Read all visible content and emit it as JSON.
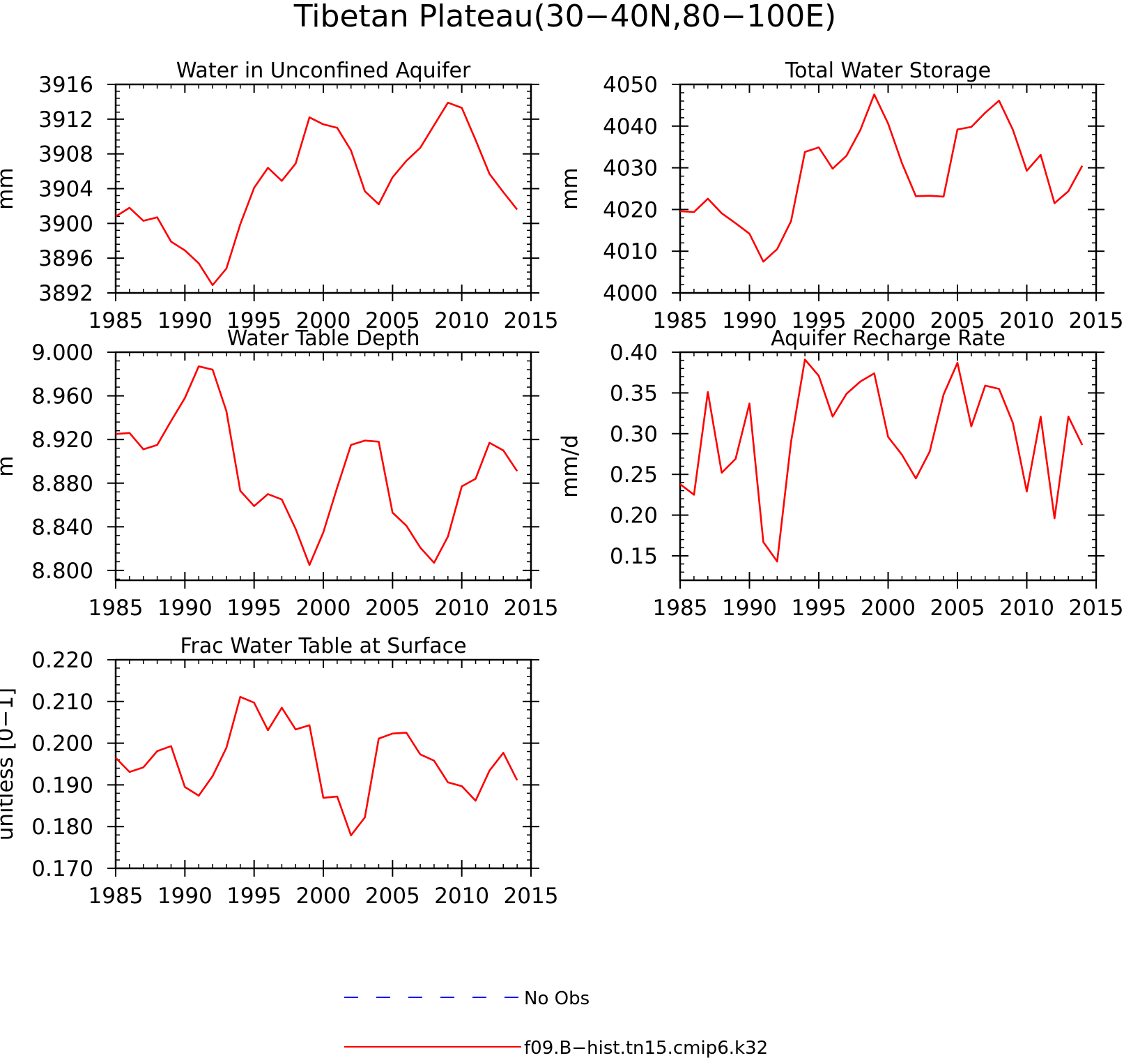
{
  "title": "Tibetan Plateau(30−40N,80−100E)",
  "colors": {
    "model": "#ff0000",
    "obs": "#0000ff",
    "axis": "#000000"
  },
  "legend": {
    "placement": "bottom-center",
    "entries": [
      {
        "label": "No Obs",
        "color": "#0000ff",
        "style": "dashed"
      },
      {
        "label": "f09.B−hist.tn15.cmip6.k32",
        "color": "#ff0000",
        "style": "solid"
      }
    ]
  },
  "chart_data": [
    {
      "type": "line",
      "title": "Water in Unconfined Aquifer",
      "ylabel": "mm",
      "xlim": [
        1985,
        2015
      ],
      "ylim": [
        3892,
        3916
      ],
      "xticks": [
        "1985",
        "1990",
        "1995",
        "2000",
        "2005",
        "2010",
        "2015"
      ],
      "yticks": [
        "3892",
        "3896",
        "3900",
        "3904",
        "3908",
        "3912",
        "3916"
      ],
      "x": [
        1985,
        1986,
        1987,
        1988,
        1989,
        1990,
        1991,
        1992,
        1993,
        1994,
        1995,
        1996,
        1997,
        1998,
        1999,
        2000,
        2001,
        2002,
        2003,
        2004,
        2005,
        2006,
        2007,
        2008,
        2009,
        2010,
        2011,
        2012,
        2013,
        2014
      ],
      "series": [
        {
          "values": [
            3900.8,
            3901.8,
            3900.3,
            3900.7,
            3897.9,
            3896.9,
            3895.4,
            3892.9,
            3894.8,
            3899.9,
            3904.1,
            3906.4,
            3904.9,
            3906.9,
            3912.2,
            3911.4,
            3911.0,
            3908.4,
            3903.7,
            3902.2,
            3905.3,
            3907.2,
            3908.7,
            3911.3,
            3913.9,
            3913.3,
            3909.6,
            3905.7,
            3903.6,
            3901.6
          ]
        }
      ],
      "grid": false
    },
    {
      "type": "line",
      "title": "Total Water Storage",
      "ylabel": "mm",
      "xlim": [
        1985,
        2015
      ],
      "ylim": [
        4000,
        4050
      ],
      "xticks": [
        "1985",
        "1990",
        "1995",
        "2000",
        "2005",
        "2010",
        "2015"
      ],
      "yticks": [
        "4000",
        "4010",
        "4020",
        "4030",
        "4040",
        "4050"
      ],
      "x": [
        1985,
        1986,
        1987,
        1988,
        1989,
        1990,
        1991,
        1992,
        1993,
        1994,
        1995,
        1996,
        1997,
        1998,
        1999,
        2000,
        2001,
        2002,
        2003,
        2004,
        2005,
        2006,
        2007,
        2008,
        2009,
        2010,
        2011,
        2012,
        2013,
        2014
      ],
      "series": [
        {
          "values": [
            4019.6,
            4019.4,
            4022.6,
            4019.1,
            4016.7,
            4014.2,
            4007.5,
            4010.5,
            4017.2,
            4033.8,
            4034.9,
            4029.8,
            4032.9,
            4039.1,
            4047.6,
            4040.6,
            4031.1,
            4023.2,
            4023.3,
            4023.1,
            4039.2,
            4039.8,
            4043.2,
            4046.1,
            4039.1,
            4029.3,
            4033.1,
            4021.5,
            4024.4,
            4030.5
          ]
        }
      ],
      "grid": false
    },
    {
      "type": "line",
      "title": "Water Table Depth",
      "ylabel": "m",
      "xlim": [
        1985,
        2015
      ],
      "ylim": [
        8.791,
        9.0
      ],
      "xticks": [
        "1985",
        "1990",
        "1995",
        "2000",
        "2005",
        "2010",
        "2015"
      ],
      "yticks": [
        "8.800",
        "8.840",
        "8.880",
        "8.920",
        "8.960",
        "9.000"
      ],
      "x": [
        1985,
        1986,
        1987,
        1988,
        1989,
        1990,
        1991,
        1992,
        1993,
        1994,
        1995,
        1996,
        1997,
        1998,
        1999,
        2000,
        2001,
        2002,
        2003,
        2004,
        2005,
        2006,
        2007,
        2008,
        2009,
        2010,
        2011,
        2012,
        2013,
        2014
      ],
      "series": [
        {
          "values": [
            8.925,
            8.926,
            8.911,
            8.915,
            8.937,
            8.958,
            8.987,
            8.984,
            8.946,
            8.873,
            8.859,
            8.87,
            8.865,
            8.838,
            8.805,
            8.835,
            8.876,
            8.915,
            8.919,
            8.918,
            8.853,
            8.841,
            8.821,
            8.807,
            8.831,
            8.877,
            8.884,
            8.917,
            8.91,
            8.891
          ]
        }
      ],
      "grid": false
    },
    {
      "type": "line",
      "title": "Aquifer Recharge Rate",
      "ylabel": "mm/d",
      "xlim": [
        1985,
        2015
      ],
      "ylim": [
        0.12,
        0.4
      ],
      "xticks": [
        "1985",
        "1990",
        "1995",
        "2000",
        "2005",
        "2010",
        "2015"
      ],
      "yticks": [
        "0.15",
        "0.20",
        "0.25",
        "0.30",
        "0.35",
        "0.40"
      ],
      "x": [
        1985,
        1986,
        1987,
        1988,
        1989,
        1990,
        1991,
        1992,
        1993,
        1994,
        1995,
        1996,
        1997,
        1998,
        1999,
        2000,
        2001,
        2002,
        2003,
        2004,
        2005,
        2006,
        2007,
        2008,
        2009,
        2010,
        2011,
        2012,
        2013,
        2014
      ],
      "series": [
        {
          "values": [
            0.238,
            0.225,
            0.351,
            0.252,
            0.269,
            0.337,
            0.167,
            0.143,
            0.29,
            0.391,
            0.371,
            0.321,
            0.349,
            0.364,
            0.374,
            0.296,
            0.274,
            0.245,
            0.278,
            0.348,
            0.387,
            0.309,
            0.359,
            0.355,
            0.313,
            0.229,
            0.321,
            0.196,
            0.321,
            0.286
          ]
        }
      ],
      "grid": false
    },
    {
      "type": "line",
      "title": "Frac Water Table at Surface",
      "ylabel": "unitless [0−1]",
      "xlim": [
        1985,
        2015
      ],
      "ylim": [
        0.17,
        0.22
      ],
      "xticks": [
        "1985",
        "1990",
        "1995",
        "2000",
        "2005",
        "2010",
        "2015"
      ],
      "yticks": [
        "0.170",
        "0.180",
        "0.190",
        "0.200",
        "0.210",
        "0.220"
      ],
      "x": [
        1985,
        1986,
        1987,
        1988,
        1989,
        1990,
        1991,
        1992,
        1993,
        1994,
        1995,
        1996,
        1997,
        1998,
        1999,
        2000,
        2001,
        2002,
        2003,
        2004,
        2005,
        2006,
        2007,
        2008,
        2009,
        2010,
        2011,
        2012,
        2013,
        2014
      ],
      "series": [
        {
          "values": [
            0.1965,
            0.1931,
            0.1942,
            0.1981,
            0.1993,
            0.1895,
            0.1874,
            0.1921,
            0.1989,
            0.2111,
            0.2097,
            0.2031,
            0.2085,
            0.2033,
            0.2043,
            0.1869,
            0.1872,
            0.1779,
            0.1822,
            0.2011,
            0.2023,
            0.2025,
            0.1973,
            0.1958,
            0.1906,
            0.1897,
            0.1862,
            0.1934,
            0.1977,
            0.1911
          ]
        }
      ],
      "grid": false
    }
  ]
}
